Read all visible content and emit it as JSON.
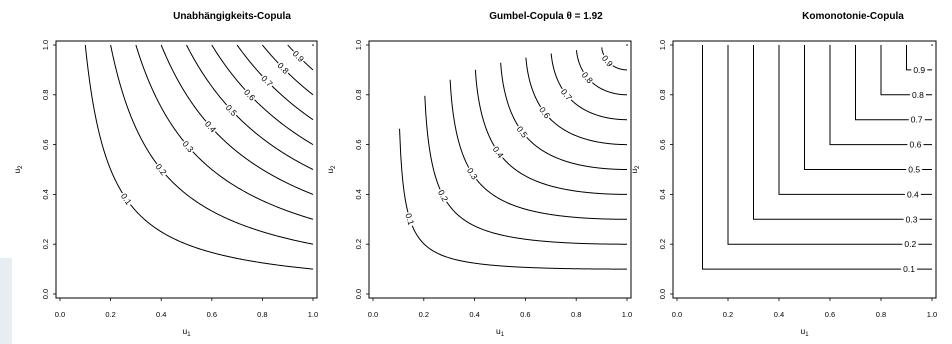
{
  "chart_data": [
    {
      "type": "contour",
      "title": "Unabhängigkeits-Copula",
      "copula": "independence",
      "xlabel": "u1",
      "ylabel": "u2",
      "xlim": [
        0,
        1
      ],
      "ylim": [
        0,
        1
      ],
      "xticks": [
        "0.0",
        "0.2",
        "0.4",
        "0.6",
        "0.8",
        "1.0"
      ],
      "yticks": [
        "0.0",
        "0.2",
        "0.4",
        "0.6",
        "0.8",
        "1.0"
      ],
      "levels": [
        0.1,
        0.2,
        0.3,
        0.4,
        0.5,
        0.6,
        0.7,
        0.8,
        0.9
      ],
      "level_labels": [
        "0.1",
        "0.2",
        "0.3",
        "0.4",
        "0.5",
        "0.6",
        "0.7",
        "0.8",
        "0.9"
      ],
      "grid": false
    },
    {
      "type": "contour",
      "title": "Gumbel-Copula θ = 1.92",
      "copula": "gumbel",
      "theta": 1.92,
      "xlabel": "u1",
      "ylabel": "u2",
      "xlim": [
        0,
        1
      ],
      "ylim": [
        0,
        1
      ],
      "xticks": [
        "0.0",
        "0.2",
        "0.4",
        "0.6",
        "0.8",
        "1.0"
      ],
      "yticks": [
        "0.0",
        "0.2",
        "0.4",
        "0.6",
        "0.8",
        "1.0"
      ],
      "levels": [
        0.1,
        0.2,
        0.3,
        0.4,
        0.5,
        0.6,
        0.7,
        0.8,
        0.9
      ],
      "level_labels": [
        "0.1",
        "0.2",
        "0.3",
        "0.4",
        "0.5",
        "0.6",
        "0.7",
        "0.8",
        "0.9"
      ],
      "grid": false
    },
    {
      "type": "contour",
      "title": "Komonotonie-Copula",
      "copula": "comonotonic",
      "xlabel": "u1",
      "ylabel": "u2",
      "xlim": [
        0,
        1
      ],
      "ylim": [
        0,
        1
      ],
      "xticks": [
        "0.0",
        "0.2",
        "0.4",
        "0.6",
        "0.8",
        "1.0"
      ],
      "yticks": [
        "0.0",
        "0.2",
        "0.4",
        "0.6",
        "0.8",
        "1.0"
      ],
      "levels": [
        0.1,
        0.2,
        0.3,
        0.4,
        0.5,
        0.6,
        0.7,
        0.8,
        0.9
      ],
      "level_labels": [
        "0.1",
        "0.2",
        "0.3",
        "0.4",
        "0.5",
        "0.6",
        "0.7",
        "0.8",
        "0.9"
      ],
      "grid": false
    }
  ]
}
